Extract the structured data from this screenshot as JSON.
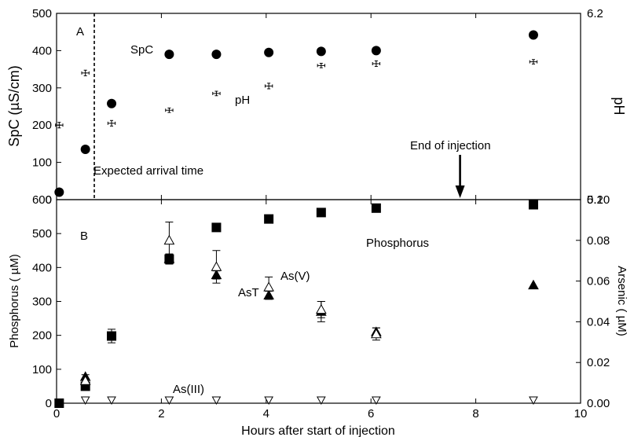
{
  "chart_data": [
    {
      "panel": "A",
      "type": "scatter",
      "xlim": [
        0,
        10
      ],
      "xticks": [
        0,
        2,
        4,
        6,
        8,
        10
      ],
      "ylabel": "SpC (µS/cm)",
      "ylim": [
        0,
        500
      ],
      "yticks": [
        0,
        100,
        200,
        300,
        400,
        500
      ],
      "y2label": "pH",
      "y2lim": [
        5.2,
        6.2
      ],
      "y2ticks": [
        {
          "value": 5.2,
          "label": "5.2"
        },
        {
          "value": 6.2,
          "label": "6.2"
        }
      ],
      "series": [
        {
          "name": "SpC",
          "axis": "left",
          "marker": "filled-circle",
          "x": [
            0.05,
            0.55,
            1.05,
            2.15,
            3.05,
            4.05,
            5.05,
            6.1,
            9.1
          ],
          "y": [
            20,
            135,
            258,
            390,
            390,
            395,
            398,
            400,
            442
          ]
        },
        {
          "name": "pH",
          "axis": "right",
          "marker": "errorbar-cross",
          "x": [
            0.05,
            0.55,
            1.05,
            2.15,
            3.05,
            4.05,
            5.05,
            6.1,
            9.1
          ],
          "y": [
            5.6,
            5.88,
            5.61,
            5.68,
            5.77,
            5.81,
            5.92,
            5.93,
            5.94
          ],
          "xerr": [
            0.07,
            0.07,
            0.07,
            0.07,
            0.07,
            0.07,
            0.07,
            0.07,
            0.07
          ],
          "yerr": [
            0.015,
            0.015,
            0.015,
            0.012,
            0.012,
            0.015,
            0.012,
            0.015,
            0.012
          ]
        }
      ],
      "annotations": {
        "panel_label": "A",
        "spc_label": "SpC",
        "ph_label": "pH",
        "arrival_label": "Expected arrival time",
        "arrival_x": 0.72,
        "end_label": "End of injection",
        "end_x": 7.7
      }
    },
    {
      "panel": "B",
      "type": "scatter",
      "xlabel": "Hours after start of injection",
      "xlim": [
        0,
        10
      ],
      "xticks": [
        0,
        2,
        4,
        6,
        8,
        10
      ],
      "ylabel": "Phosphorus ( µM)",
      "ylim": [
        0,
        600
      ],
      "yticks": [
        0,
        100,
        200,
        300,
        400,
        500,
        600
      ],
      "y2label": "Arsenic ( µM)",
      "y2lim": [
        0,
        0.1
      ],
      "y2ticks": [
        {
          "value": 0,
          "label": "0.00"
        },
        {
          "value": 0.02,
          "label": "0.02"
        },
        {
          "value": 0.04,
          "label": "0.04"
        },
        {
          "value": 0.06,
          "label": "0.06"
        },
        {
          "value": 0.08,
          "label": "0.08"
        },
        {
          "value": 0.1,
          "label": "0.10"
        }
      ],
      "series": [
        {
          "name": "Phosphorus",
          "axis": "left",
          "marker": "filled-square",
          "x": [
            0.05,
            0.55,
            1.05,
            2.15,
            3.05,
            4.05,
            5.05,
            6.1,
            9.1
          ],
          "y": [
            0,
            50,
            198,
            425,
            518,
            543,
            562,
            575,
            585
          ],
          "yerr": [
            0,
            5,
            20,
            15,
            0,
            0,
            0,
            0,
            0
          ]
        },
        {
          "name": "AsT",
          "axis": "right",
          "marker": "filled-triangle-up",
          "x": [
            0.55,
            2.15,
            3.05,
            4.05,
            5.05,
            6.1,
            9.1
          ],
          "y": [
            0.013,
            0.071,
            0.063,
            0.053,
            0.045,
            0.035,
            0.058
          ],
          "yerr": [
            0.001,
            0.002,
            0.002,
            0.002,
            0.005,
            0.002,
            0
          ]
        },
        {
          "name": "As(V)",
          "axis": "right",
          "marker": "open-triangle-up",
          "x": [
            0.55,
            2.15,
            3.05,
            4.05,
            5.05,
            6.1
          ],
          "y": [
            0.011,
            0.08,
            0.067,
            0.057,
            0.046,
            0.034
          ],
          "yerr": [
            0.001,
            0.009,
            0.008,
            0.005,
            0.004,
            0.003
          ]
        },
        {
          "name": "As(III)",
          "axis": "right",
          "marker": "open-triangle-down",
          "x": [
            0.55,
            1.05,
            2.15,
            3.05,
            4.05,
            5.05,
            6.1,
            9.1
          ],
          "y": [
            0,
            0,
            0,
            0,
            0,
            0,
            0,
            0
          ]
        }
      ],
      "annotations": {
        "panel_label": "B",
        "phosphorus_label": "Phosphorus",
        "asv_label": "As(V)",
        "ast_label": "AsT",
        "asiii_label": "As(III)"
      }
    }
  ]
}
